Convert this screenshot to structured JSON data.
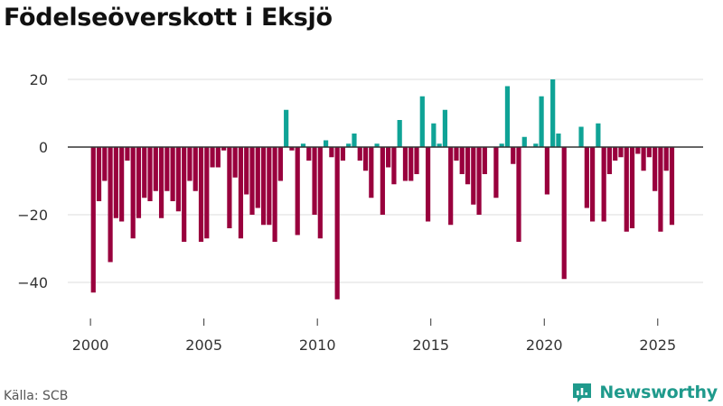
{
  "title": "Födelseöverskott i Eksjö",
  "source": "Källa: SCB",
  "brand": {
    "name": "Newsworthy",
    "logo_icon": "newsworthy-logo-icon"
  },
  "colors": {
    "positive": "#0fa396",
    "negative": "#99003d",
    "grid": "#dddddd",
    "axis": "#333333",
    "text": "#333333",
    "brand": "#1f9a8c"
  },
  "chart_data": {
    "type": "bar",
    "title": "Födelseöverskott i Eksjö",
    "xlabel": "",
    "ylabel": "",
    "x_ticks": [
      2000,
      2005,
      2010,
      2015,
      2020,
      2025
    ],
    "y_ticks": [
      20,
      0,
      -20,
      -40
    ],
    "y_tick_labels": [
      "20",
      "0",
      "−20",
      "−40"
    ],
    "xlim": [
      1999.0,
      2027.0
    ],
    "ylim": [
      -48,
      27
    ],
    "period": "monthly, averaged over quarters",
    "x": [
      2000.125,
      2000.375,
      2000.625,
      2000.875,
      2001.125,
      2001.375,
      2001.625,
      2001.875,
      2002.125,
      2002.375,
      2002.625,
      2002.875,
      2003.125,
      2003.375,
      2003.625,
      2003.875,
      2004.125,
      2004.375,
      2004.625,
      2004.875,
      2005.125,
      2005.375,
      2005.625,
      2005.875,
      2006.125,
      2006.375,
      2006.625,
      2006.875,
      2007.125,
      2007.375,
      2007.625,
      2007.875,
      2008.125,
      2008.375,
      2008.625,
      2008.875,
      2009.125,
      2009.375,
      2009.625,
      2009.875,
      2010.125,
      2010.375,
      2010.625,
      2010.875,
      2011.125,
      2011.375,
      2011.625,
      2011.875,
      2012.125,
      2012.375,
      2012.625,
      2012.875,
      2013.125,
      2013.375,
      2013.625,
      2013.875,
      2014.125,
      2014.375,
      2014.625,
      2014.875,
      2015.125,
      2015.375,
      2015.625,
      2015.875,
      2016.125,
      2016.375,
      2016.625,
      2016.875,
      2017.125,
      2017.375,
      2017.625,
      2017.875,
      2018.125,
      2018.375,
      2018.625,
      2018.875,
      2019.125,
      2019.375,
      2019.625,
      2019.875,
      2020.125,
      2020.375,
      2020.625,
      2020.875,
      2021.125,
      2021.375,
      2021.625,
      2021.875,
      2022.125,
      2022.375,
      2022.625,
      2022.875,
      2023.125,
      2023.375,
      2023.625,
      2023.875,
      2024.125,
      2024.375,
      2024.625,
      2024.875,
      2025.125,
      2025.375,
      2025.625
    ],
    "values": [
      -43,
      -16,
      -10,
      -34,
      -21,
      -22,
      -4,
      -27,
      -21,
      -15,
      -16,
      -13,
      -21,
      -13,
      -16,
      -19,
      -28,
      -10,
      -13,
      -28,
      -27,
      -6,
      -6,
      -1,
      -24,
      -9,
      -27,
      -14,
      -20,
      -18,
      -23,
      -23,
      -28,
      -10,
      11,
      -1,
      -26,
      1,
      -4,
      -20,
      -27,
      2,
      -3,
      -45,
      -4,
      1,
      4,
      -4,
      -7,
      -15,
      1,
      -20,
      -6,
      -11,
      8,
      -10,
      -10,
      -8,
      15,
      -22,
      7,
      1,
      11,
      -23,
      -4,
      -8,
      -11,
      -17,
      -20,
      -8,
      0,
      -15,
      1,
      18,
      -5,
      -28,
      3,
      0,
      1,
      15,
      -14,
      20,
      4,
      -39,
      0,
      0,
      6,
      -18,
      -22,
      7,
      -22,
      -8,
      -4,
      -3,
      -25,
      -24,
      -2,
      -7,
      -3,
      -13,
      -25,
      -7,
      -23
    ]
  }
}
